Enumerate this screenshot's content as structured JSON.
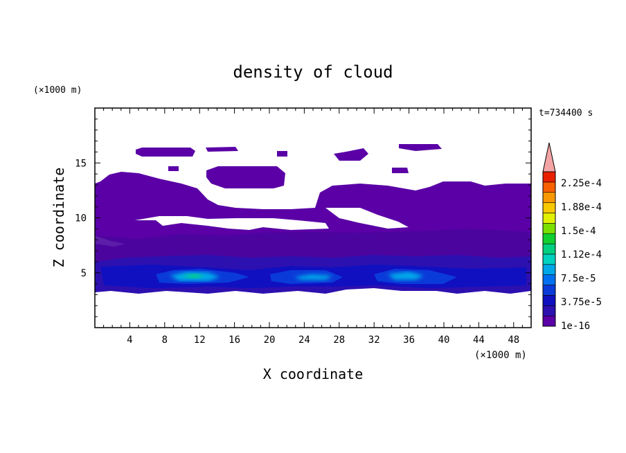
{
  "chart_data": {
    "type": "heatmap",
    "title": "density of cloud",
    "xlabel": "X coordinate",
    "ylabel": "Z coordinate",
    "x_unit": "(×1000 m)",
    "y_unit": "(×1000 m)",
    "time_label": "t=734400 s",
    "xlim": [
      0,
      50
    ],
    "ylim": [
      0,
      20
    ],
    "x_ticks": [
      4,
      8,
      12,
      16,
      20,
      24,
      28,
      32,
      36,
      40,
      44,
      48
    ],
    "y_ticks": [
      5,
      10,
      15
    ],
    "colorbar": {
      "extend": "max",
      "levels": [
        "1e-16",
        "3.75e-5",
        "7.5e-5",
        "1.12e-4",
        "1.5e-4",
        "1.88e-4",
        "2.25e-4"
      ],
      "colors": [
        "#5a00a6",
        "#2d10b0",
        "#1010c0",
        "#0a3ad8",
        "#0070f0",
        "#00a8e8",
        "#00d2c0",
        "#00d080",
        "#10d030",
        "#7be000",
        "#e0f000",
        "#f8c800",
        "#f89800",
        "#f86000",
        "#e82000",
        "#f4a4a4"
      ]
    },
    "regions": [
      {
        "name": "upper cloud layer",
        "x": [
          0,
          50
        ],
        "z": [
          8,
          14
        ],
        "level": "1e-16"
      },
      {
        "name": "cirrus patches",
        "x": [
          5,
          40
        ],
        "z": [
          14.5,
          16.5
        ],
        "level": "1e-16"
      },
      {
        "name": "lower dense layer",
        "x": [
          0,
          50
        ],
        "z": [
          3.3,
          7
        ],
        "level": "3.75e-5"
      },
      {
        "name": "core 1",
        "x": [
          9,
          15
        ],
        "z": [
          4.2,
          5.2
        ],
        "level": "1.12e-4"
      },
      {
        "name": "core 2",
        "x": [
          22,
          28
        ],
        "z": [
          4.2,
          5.0
        ],
        "level": "7.5e-5"
      },
      {
        "name": "core 3",
        "x": [
          33,
          40
        ],
        "z": [
          4.2,
          5.2
        ],
        "level": "7.5e-5"
      }
    ]
  }
}
